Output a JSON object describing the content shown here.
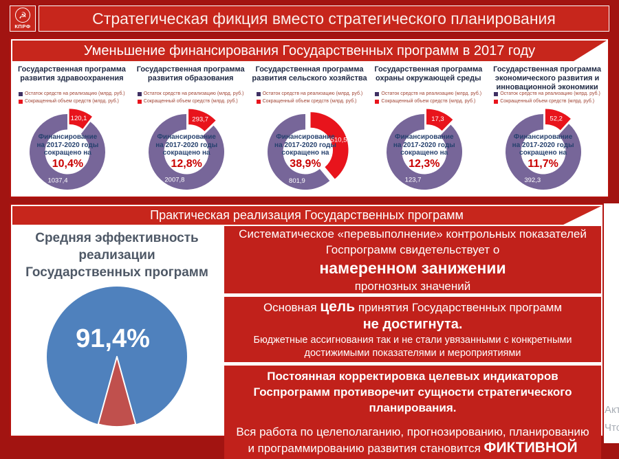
{
  "header": {
    "logo_text": "КПРФ",
    "logo_icon": "hammer-and-sickle",
    "title": "Стратегическая фикция вместо стратегического планирования"
  },
  "funding_section": {
    "title": "Уменьшение финансирования Государственных программ в 2017 году",
    "legend": [
      {
        "label": "Остаток средств на реализацию (млрд. руб.)",
        "color": "#3f3063"
      },
      {
        "label": "Сокращенный объем средств (млрд. руб.)",
        "color": "#e8141c"
      }
    ],
    "center_lines": [
      "Финансирование",
      "на 2017-2020 годы",
      "сокращено на"
    ]
  },
  "realization_section": {
    "title": "Практическая реализация Государственных программ"
  },
  "effectiveness": {
    "title_lines": [
      "Средняя эффективность",
      "реализации",
      "Государственных программ"
    ],
    "value_label": "91,4%"
  },
  "statements": [
    {
      "lines": [
        {
          "size": "md",
          "runs": [
            {
              "text": "Систематическое «перевыполнение» контрольных показателей Госпрограмм свидетельствует о"
            }
          ]
        },
        {
          "size": "xl",
          "runs": [
            {
              "text": "намеренном занижении"
            }
          ]
        },
        {
          "size": "md",
          "runs": [
            {
              "text": "прогнозных значений"
            }
          ]
        }
      ]
    },
    {
      "lines": [
        {
          "size": "md",
          "runs": [
            {
              "text": "Основная "
            },
            {
              "text": "цель",
              "big": true
            },
            {
              "text": " принятия Государственных программ"
            }
          ]
        },
        {
          "size": "lg",
          "runs": [
            {
              "text": "не достигнута."
            }
          ]
        },
        {
          "size": "sm",
          "runs": [
            {
              "text": "Бюджетные ассигнования так и не стали увязанными с конкретными достижимыми показателями и мероприятиями"
            }
          ]
        }
      ]
    },
    {
      "lines": [
        {
          "size": "mdb",
          "runs": [
            {
              "text": "Постоянная корректировка целевых индикаторов Госпрограмм противоречит сущности стратегического планирования."
            }
          ]
        },
        {
          "size": "sp",
          "runs": []
        },
        {
          "size": "md",
          "runs": [
            {
              "text": "Вся работа по целеполаганию, прогнозированию, планированию и программированию развития становится "
            },
            {
              "text": "ФИКТИВНОЙ",
              "big": true
            }
          ]
        }
      ]
    }
  ],
  "watermark": {
    "lines": [
      "Акт",
      "Что"
    ]
  },
  "chart_data": [
    {
      "type": "donut",
      "title": "Государственная программа развития здравоохранения",
      "categories": [
        "Остаток средств на реализацию (млрд. руб.)",
        "Сокращенный объем средств (млрд. руб.)"
      ],
      "values": [
        1037.4,
        120.1
      ],
      "value_labels": [
        "1037,4",
        "120,1"
      ],
      "reduction_pct": "10,4%",
      "colors": [
        "#776699",
        "#e8141c"
      ]
    },
    {
      "type": "donut",
      "title": "Государственная программа развития образования",
      "categories": [
        "Остаток средств на реализацию (млрд. руб.)",
        "Сокращенный объем средств (млрд. руб.)"
      ],
      "values": [
        2007.8,
        293.7
      ],
      "value_labels": [
        "2007,8",
        "293,7"
      ],
      "reduction_pct": "12,8%",
      "colors": [
        "#776699",
        "#e8141c"
      ]
    },
    {
      "type": "donut",
      "title": "Государственная программа развития сельского хозяйства",
      "categories": [
        "Остаток средств на реализацию (млрд. руб.)",
        "Сокращенный объем средств (млрд. руб.)"
      ],
      "values": [
        801.9,
        510.5
      ],
      "value_labels": [
        "801,9",
        "510,5"
      ],
      "reduction_pct": "38,9%",
      "colors": [
        "#776699",
        "#e8141c"
      ]
    },
    {
      "type": "donut",
      "title": "Государственная программа охраны окружающей среды",
      "categories": [
        "Остаток средств на реализацию (млрд. руб.)",
        "Сокращенный объем средств (млрд. руб.)"
      ],
      "values": [
        123.7,
        17.3
      ],
      "value_labels": [
        "123,7",
        "17,3"
      ],
      "reduction_pct": "12,3%",
      "colors": [
        "#776699",
        "#e8141c"
      ]
    },
    {
      "type": "donut",
      "title": "Государственная программа экономического развития и инновационной экономики",
      "categories": [
        "Остаток средств на реализацию (млрд. руб.)",
        "Сокращенный объем средств (млрд. руб.)"
      ],
      "values": [
        392.3,
        52.2
      ],
      "value_labels": [
        "392,3",
        "52,2"
      ],
      "reduction_pct": "11,7%",
      "colors": [
        "#776699",
        "#e8141c"
      ]
    },
    {
      "type": "pie",
      "title": "Средняя эффективность реализации Государственных программ",
      "values": [
        91.4,
        8.6
      ],
      "value_label": "91,4%",
      "colors": [
        "#4f81bd",
        "#c0504d"
      ]
    }
  ]
}
